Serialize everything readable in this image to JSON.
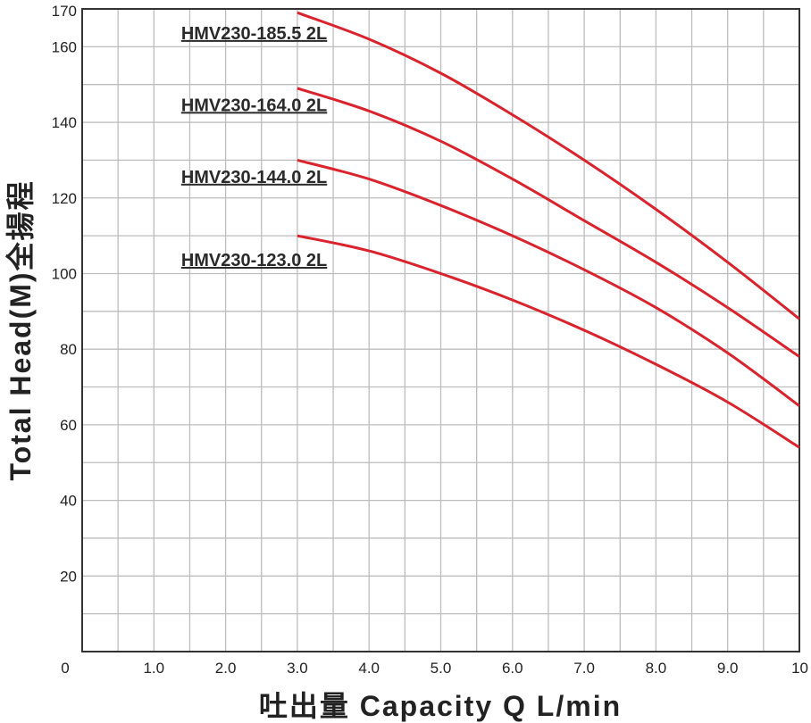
{
  "chart_data": {
    "type": "line",
    "xlabel": "吐出量 Capacity Q L/min",
    "ylabel": "Total Head(M)全揚程",
    "xlim": [
      0,
      10
    ],
    "ylim": [
      0,
      170
    ],
    "x_ticks": [
      {
        "value": 0,
        "label": "0"
      },
      {
        "value": 1,
        "label": "1.0"
      },
      {
        "value": 2,
        "label": "2.0"
      },
      {
        "value": 3,
        "label": "3.0"
      },
      {
        "value": 4,
        "label": "4.0"
      },
      {
        "value": 5,
        "label": "5.0"
      },
      {
        "value": 6,
        "label": "6.0"
      },
      {
        "value": 7,
        "label": "7.0"
      },
      {
        "value": 8,
        "label": "8.0"
      },
      {
        "value": 9,
        "label": "9.0"
      },
      {
        "value": 10,
        "label": "10"
      }
    ],
    "y_ticks": [
      {
        "value": 20,
        "label": "20"
      },
      {
        "value": 40,
        "label": "40"
      },
      {
        "value": 60,
        "label": "60"
      },
      {
        "value": 80,
        "label": "80"
      },
      {
        "value": 100,
        "label": "100"
      },
      {
        "value": 120,
        "label": "120"
      },
      {
        "value": 140,
        "label": "140"
      },
      {
        "value": 160,
        "label": "160"
      },
      {
        "value": 170,
        "label": "170"
      }
    ],
    "grid": true,
    "grid_x_step": 0.5,
    "grid_y_step": 10,
    "series_color": "#d9232d",
    "series": [
      {
        "name": "HMV230-185.5 2L",
        "x": [
          3,
          4,
          5,
          6,
          7,
          8,
          9,
          10
        ],
        "values": [
          169,
          162,
          153,
          142,
          130,
          117,
          103,
          88
        ],
        "label_anchor": [
          1.38,
          162
        ]
      },
      {
        "name": "HMV230-164.0 2L",
        "x": [
          3,
          4,
          5,
          6,
          7,
          8,
          9,
          10
        ],
        "values": [
          149,
          143,
          135,
          125,
          114,
          103,
          91,
          78
        ],
        "label_anchor": [
          1.38,
          143
        ]
      },
      {
        "name": "HMV230-144.0 2L",
        "x": [
          3,
          4,
          5,
          6,
          7,
          8,
          9,
          10
        ],
        "values": [
          130,
          125,
          118,
          110,
          101,
          91,
          79,
          65
        ],
        "label_anchor": [
          1.38,
          124
        ]
      },
      {
        "name": "HMV230-123.0 2L",
        "x": [
          3,
          4,
          5,
          6,
          7,
          8,
          9,
          10
        ],
        "values": [
          110,
          106,
          100,
          93,
          85,
          76,
          66,
          54
        ],
        "label_anchor": [
          1.38,
          102
        ]
      }
    ]
  }
}
